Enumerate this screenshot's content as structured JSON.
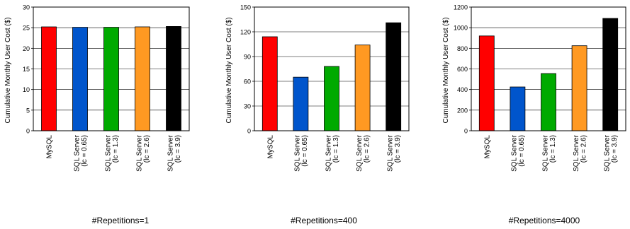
{
  "chart_data": [
    {
      "type": "bar",
      "caption": "#Repetitions=1",
      "ylabel": "Cumulative Monthly User Cost ($)",
      "ylim": [
        0,
        30
      ],
      "yticks": [
        0,
        5,
        10,
        15,
        20,
        25,
        30
      ],
      "categories": [
        [
          "MySQL"
        ],
        [
          "SQL Server",
          "(lc = 0.65)"
        ],
        [
          "SQL Server",
          "(lc = 1.3)"
        ],
        [
          "SQL Server",
          "(lc = 2.6)"
        ],
        [
          "SQL Server",
          "(lc = 3.9)"
        ]
      ],
      "values": [
        25.2,
        25.1,
        25.1,
        25.2,
        25.3
      ],
      "colors": [
        "#ff0000",
        "#0055cc",
        "#00aa00",
        "#ff9922",
        "#000000"
      ],
      "grid": "horizontal",
      "legend": "none"
    },
    {
      "type": "bar",
      "caption": "#Repetitions=400",
      "ylabel": "Cumulative Monthly User Cost ($)",
      "ylim": [
        0,
        150
      ],
      "yticks": [
        0,
        30,
        60,
        90,
        120,
        150
      ],
      "categories": [
        [
          "MySQL"
        ],
        [
          "SQL Server",
          "(lc = 0.65)"
        ],
        [
          "SQL Server",
          "(lc = 1.3)"
        ],
        [
          "SQL Server",
          "(lc = 2.6)"
        ],
        [
          "SQL Server",
          "(lc = 3.9)"
        ]
      ],
      "values": [
        114,
        65,
        78,
        104,
        131
      ],
      "colors": [
        "#ff0000",
        "#0055cc",
        "#00aa00",
        "#ff9922",
        "#000000"
      ],
      "grid": "horizontal",
      "legend": "none"
    },
    {
      "type": "bar",
      "caption": "#Repetitions=4000",
      "ylabel": "Cumulative Monthly User Cost ($)",
      "ylim": [
        0,
        1200
      ],
      "yticks": [
        0,
        200,
        400,
        600,
        800,
        1000,
        1200
      ],
      "categories": [
        [
          "MySQL"
        ],
        [
          "SQL Server",
          "(lc = 0.65)"
        ],
        [
          "SQL Server",
          "(lc = 1.3)"
        ],
        [
          "SQL Server",
          "(lc = 2.6)"
        ],
        [
          "SQL Server",
          "(lc = 3.9)"
        ]
      ],
      "values": [
        920,
        425,
        555,
        825,
        1090
      ],
      "colors": [
        "#ff0000",
        "#0055cc",
        "#00aa00",
        "#ff9922",
        "#000000"
      ],
      "grid": "horizontal",
      "legend": "none"
    }
  ]
}
